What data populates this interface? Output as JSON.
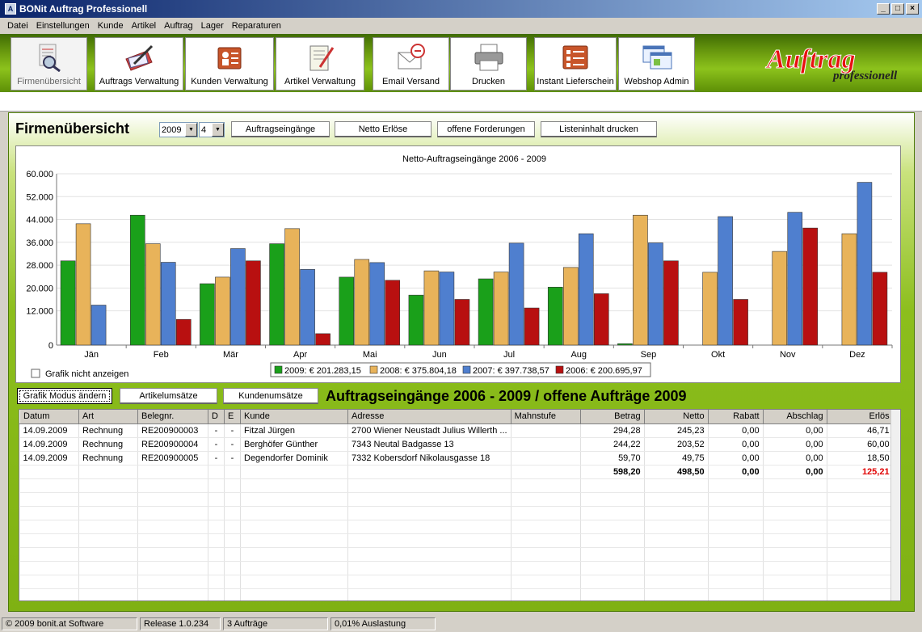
{
  "window": {
    "title": "BONit Auftrag Professionell",
    "app_icon": "A"
  },
  "window_buttons": {
    "minimize": "_",
    "maximize": "□",
    "close": "×"
  },
  "menu": [
    "Datei",
    "Einstellungen",
    "Kunde",
    "Artikel",
    "Auftrag",
    "Lager",
    "Reparaturen"
  ],
  "toolbar": [
    {
      "label": "Firmenübersicht",
      "icon": "magnifier-document-icon"
    },
    {
      "label": "Auftrags Verwaltung",
      "icon": "order-pen-icon"
    },
    {
      "label": "Kunden Verwaltung",
      "icon": "customer-card-icon"
    },
    {
      "label": "Artikel Verwaltung",
      "icon": "article-notepad-icon"
    },
    {
      "label": "Email Versand",
      "icon": "email-envelope-icon"
    },
    {
      "label": "Drucken",
      "icon": "printer-icon"
    },
    {
      "label": "Instant Lieferschein",
      "icon": "checklist-icon"
    },
    {
      "label": "Webshop Admin",
      "icon": "browser-windows-icon"
    }
  ],
  "logo": {
    "main": "Auftrag",
    "sub": "professionell"
  },
  "overview": {
    "title": "Firmenübersicht",
    "year": "2009",
    "month": "4",
    "buttons": [
      "Auftragseingänge",
      "Netto Erlöse",
      "offene Forderungen",
      "Listeninhalt drucken"
    ]
  },
  "chart_data": {
    "type": "bar",
    "title": "Netto-Auftragseingänge 2006 - 2009",
    "categories": [
      "Jän",
      "Feb",
      "Mär",
      "Apr",
      "Mai",
      "Jun",
      "Jul",
      "Aug",
      "Sep",
      "Okt",
      "Nov",
      "Dez"
    ],
    "ylim": [
      0,
      60000
    ],
    "yticks": [
      "0",
      "12.000",
      "20.000",
      "28.000",
      "36.000",
      "44.000",
      "52.000",
      "60.000"
    ],
    "ytick_values": [
      0,
      12000,
      20000,
      28000,
      36000,
      44000,
      52000,
      60000
    ],
    "grid": true,
    "legend_position": "bottom",
    "series": [
      {
        "name": "2009",
        "color": "#1aa01a",
        "values": [
          29500,
          45500,
          21500,
          35500,
          23800,
          17500,
          23200,
          20300,
          500,
          0,
          0,
          0
        ]
      },
      {
        "name": "2008",
        "color": "#e8b35a",
        "values": [
          42500,
          35500,
          23800,
          40800,
          30000,
          26000,
          25600,
          27200,
          45500,
          25500,
          32800,
          39000
        ]
      },
      {
        "name": "2007",
        "color": "#4f7fcf",
        "values": [
          14000,
          29000,
          33800,
          26500,
          28900,
          25600,
          35700,
          39000,
          35800,
          45000,
          46500,
          57000
        ]
      },
      {
        "name": "2006",
        "color": "#b81010",
        "values": [
          0,
          9000,
          29500,
          4000,
          22700,
          16000,
          13000,
          18000,
          29500,
          16000,
          41000,
          25500
        ]
      }
    ],
    "legend": [
      {
        "label": "2009:  € 201.283,15"
      },
      {
        "label": "2008:  € 375.804,18"
      },
      {
        "label": "2007:  € 397.738,57"
      },
      {
        "label": "2006:  € 200.695,97"
      }
    ]
  },
  "grafik_checkbox": {
    "label": "Grafik nicht anzeigen",
    "checked": false
  },
  "orders": {
    "buttons": [
      "Grafik Modus ändern",
      "Artikelumsätze",
      "Kundenumsätze"
    ],
    "title": "Auftragseingänge 2006 - 2009 / offene Aufträge 2009",
    "columns": [
      "Datum",
      "Art",
      "Belegnr.",
      "D",
      "E",
      "Kunde",
      "Adresse",
      "Mahnstufe",
      "Betrag",
      "Netto",
      "Rabatt",
      "Abschlag",
      "Erlös"
    ],
    "rows": [
      [
        "14.09.2009",
        "Rechnung",
        "RE200900003",
        "-",
        "-",
        "Fitzal Jürgen",
        "2700 Wiener Neustadt Julius Willerth ...",
        "",
        "294,28",
        "245,23",
        "0,00",
        "0,00",
        "46,71"
      ],
      [
        "14.09.2009",
        "Rechnung",
        "RE200900004",
        "-",
        "-",
        "Berghöfer Günther",
        "7343 Neutal Badgasse 13",
        "",
        "244,22",
        "203,52",
        "0,00",
        "0,00",
        "60,00"
      ],
      [
        "14.09.2009",
        "Rechnung",
        "RE200900005",
        "-",
        "-",
        "Degendorfer Dominik",
        "7332 Kobersdorf Nikolausgasse 18",
        "",
        "59,70",
        "49,75",
        "0,00",
        "0,00",
        "18,50"
      ]
    ],
    "totals": [
      "",
      "",
      "",
      "",
      "",
      "",
      "",
      "",
      "598,20",
      "498,50",
      "0,00",
      "0,00",
      "125,21"
    ]
  },
  "status": [
    "© 2009 bonit.at Software",
    "Release 1.0.234",
    "3 Aufträge",
    "0,01% Auslastung"
  ]
}
